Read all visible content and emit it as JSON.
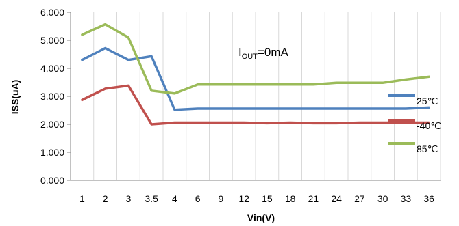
{
  "chart_data": {
    "type": "line",
    "title": "",
    "xlabel": "Vin(V)",
    "ylabel": "ISS(uA)",
    "categories": [
      "1",
      "2",
      "3",
      "3.5",
      "4",
      "6",
      "9",
      "12",
      "15",
      "18",
      "21",
      "24",
      "27",
      "30",
      "33",
      "36"
    ],
    "ylim": [
      0,
      6
    ],
    "yticks": [
      "0.000",
      "1.000",
      "2.000",
      "3.000",
      "4.000",
      "5.000",
      "6.000"
    ],
    "grid": "vertical",
    "annotation": {
      "main": "I",
      "sub": "OUT",
      "rest": "=0mA"
    },
    "legend_position": "right",
    "series": [
      {
        "name": "25℃",
        "color": "#4f81bd",
        "values": [
          4.3,
          4.72,
          4.3,
          4.43,
          2.52,
          2.56,
          2.56,
          2.56,
          2.56,
          2.56,
          2.56,
          2.56,
          2.56,
          2.56,
          2.56,
          2.6
        ]
      },
      {
        "name": "-40℃",
        "color": "#c0504d",
        "values": [
          2.87,
          3.27,
          3.38,
          2.0,
          2.06,
          2.06,
          2.06,
          2.06,
          2.04,
          2.06,
          2.04,
          2.04,
          2.06,
          2.06,
          2.06,
          2.06
        ]
      },
      {
        "name": "85℃",
        "color": "#9bbb59",
        "values": [
          5.2,
          5.57,
          5.1,
          3.2,
          3.1,
          3.42,
          3.42,
          3.42,
          3.42,
          3.42,
          3.42,
          3.48,
          3.48,
          3.48,
          3.6,
          3.7
        ]
      }
    ]
  }
}
